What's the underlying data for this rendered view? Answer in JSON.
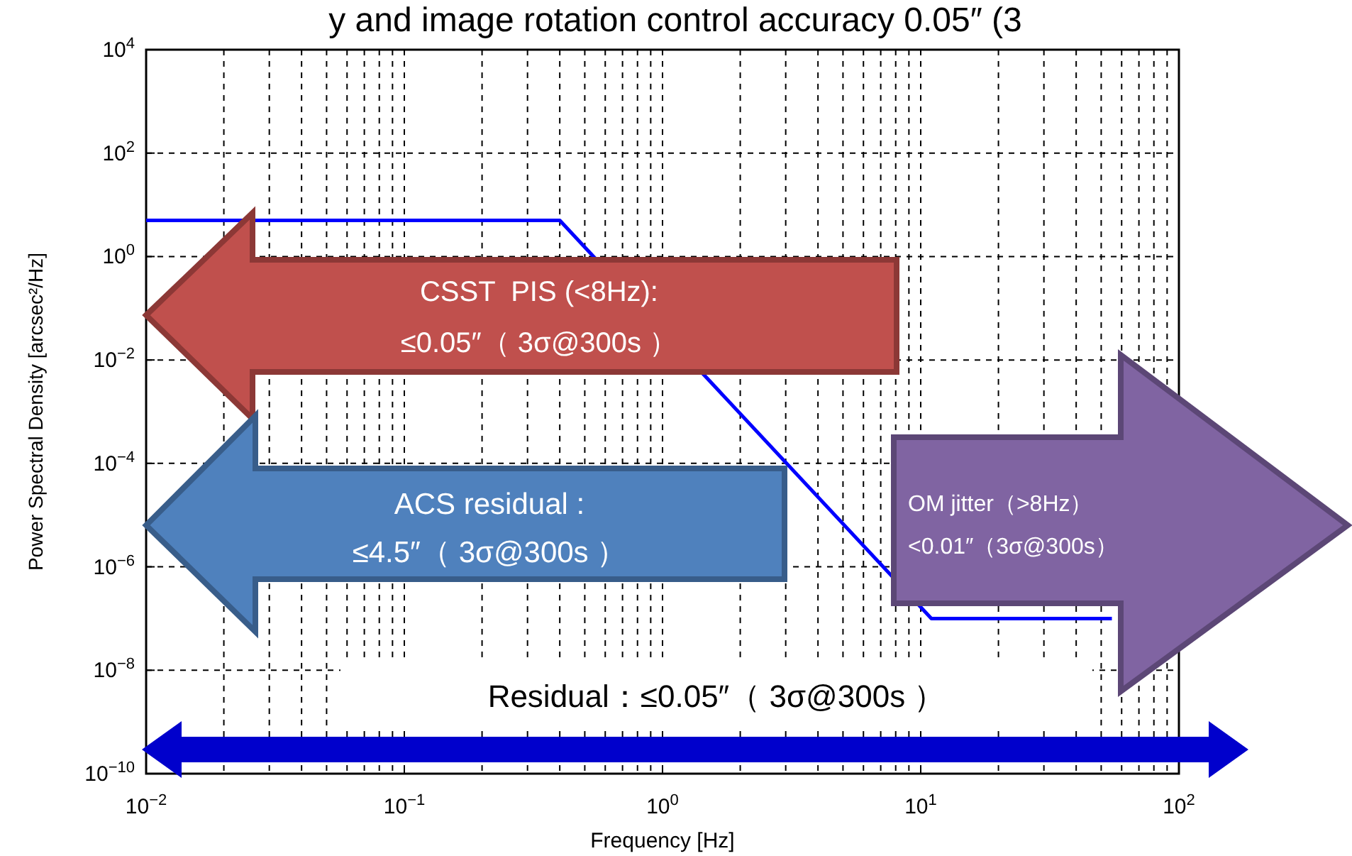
{
  "chart_data": {
    "type": "line",
    "title": "y and image rotation control accuracy 0.05″ (3",
    "xlabel": "Frequency [Hz]",
    "ylabel": "Power Spectral Density [arcsec²/Hz]",
    "log": "xy",
    "grid": true,
    "xlim": [
      0.01,
      100
    ],
    "ylim": [
      1e-10,
      10000
    ],
    "xticks": [
      {
        "value": 0.01,
        "label": "10$^{−2}$"
      },
      {
        "value": 0.1,
        "label": "10$^{−1}$"
      },
      {
        "value": 1,
        "label": "10$^{0}$"
      },
      {
        "value": 10,
        "label": "10$^{1}$"
      },
      {
        "value": 100,
        "label": "10$^{2}$"
      }
    ],
    "yticks": [
      {
        "value": 1e-10,
        "label": "10$^{−10}$"
      },
      {
        "value": 1e-08,
        "label": "10$^{−8}$"
      },
      {
        "value": 1e-06,
        "label": "10$^{−6}$"
      },
      {
        "value": 0.0001,
        "label": "10$^{−4}$"
      },
      {
        "value": 0.01,
        "label": "10$^{−2}$"
      },
      {
        "value": 1,
        "label": "10$^{0}$"
      },
      {
        "value": 100,
        "label": "10$^{2}$"
      },
      {
        "value": 10000,
        "label": "10$^{4}$"
      }
    ],
    "series": [
      {
        "color": "#0000ff",
        "x": [
          0.01,
          0.4,
          11,
          55
        ],
        "values": [
          5,
          5,
          1e-07,
          1e-07
        ]
      }
    ],
    "annotations": [
      "CSST  PIS (<8Hz):\n≤0.05″（ 3σ@300s ）",
      "ACS residual :\n≤4.5″（ 3σ@300s ）",
      "OM jitter（>8Hz）\n<0.01″（3σ@300s）",
      "Residual：≤0.05″（ 3σ@300s ）"
    ]
  }
}
